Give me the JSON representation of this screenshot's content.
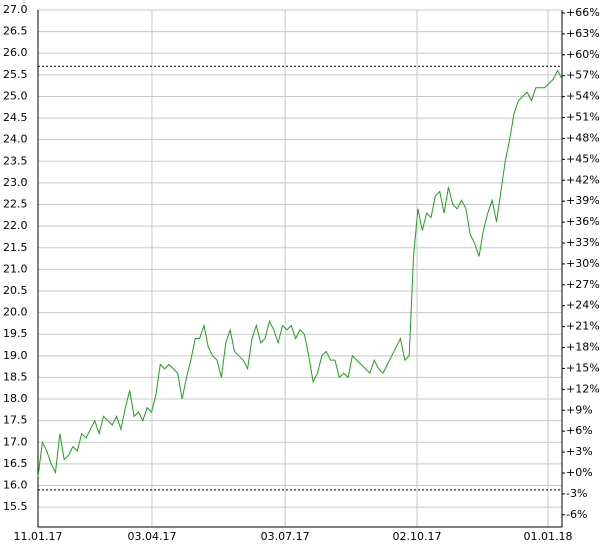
{
  "chart_data": {
    "type": "line",
    "series": [
      {
        "color": "#1fa01f",
        "values": [
          16.2,
          17.0,
          16.8,
          16.5,
          16.3,
          17.2,
          16.6,
          16.7,
          16.9,
          16.8,
          17.2,
          17.1,
          17.3,
          17.5,
          17.2,
          17.6,
          17.5,
          17.4,
          17.6,
          17.3,
          17.8,
          18.2,
          17.6,
          17.7,
          17.5,
          17.8,
          17.7,
          18.1,
          18.8,
          18.7,
          18.8,
          18.7,
          18.6,
          18.0,
          18.5,
          18.9,
          19.4,
          19.4,
          19.7,
          19.2,
          19.0,
          18.9,
          18.5,
          19.3,
          19.6,
          19.1,
          19.0,
          18.9,
          18.7,
          19.4,
          19.7,
          19.3,
          19.4,
          19.8,
          19.6,
          19.3,
          19.7,
          19.6,
          19.7,
          19.4,
          19.6,
          19.5,
          19.0,
          18.4,
          18.6,
          19.0,
          19.1,
          18.9,
          18.9,
          18.5,
          18.6,
          18.5,
          19.0,
          18.9,
          18.8,
          18.7,
          18.6,
          18.9,
          18.7,
          18.6,
          18.8,
          19.0,
          19.2,
          19.4,
          18.9,
          19.0,
          21.3,
          22.4,
          21.9,
          22.3,
          22.2,
          22.7,
          22.8,
          22.3,
          22.9,
          22.5,
          22.4,
          22.6,
          22.4,
          21.8,
          21.6,
          21.3,
          21.9,
          22.3,
          22.6,
          22.1,
          22.8,
          23.5,
          24.0,
          24.6,
          24.9,
          25.0,
          25.1,
          24.9,
          25.2,
          25.2,
          25.2,
          25.3,
          25.4,
          25.6,
          25.4
        ]
      }
    ],
    "xlim": [
      0,
      120
    ],
    "xticks": [
      {
        "value": 0,
        "label": "11.01.17"
      },
      {
        "value": 26.1,
        "label": "03.04.17"
      },
      {
        "value": 56.6,
        "label": "03.07.17"
      },
      {
        "value": 86.8,
        "label": "02.10.17"
      },
      {
        "value": 116.8,
        "label": "01.01.18"
      }
    ],
    "ylim": [
      15.04,
      27.0
    ],
    "yticks": [
      15.5,
      {
        "value": 16,
        "label": "16.0"
      },
      16.5,
      {
        "value": 17,
        "label": "17.0"
      },
      17.5,
      {
        "value": 18,
        "label": "18.0"
      },
      18.5,
      {
        "value": 19,
        "label": "19.0"
      },
      19.5,
      {
        "value": 20,
        "label": "20.0"
      },
      20.5,
      {
        "value": 21,
        "label": "21.0"
      },
      21.5,
      {
        "value": 22,
        "label": "22.0"
      },
      22.5,
      {
        "value": 23,
        "label": "23.0"
      },
      23.5,
      {
        "value": 24,
        "label": "24.0"
      },
      24.5,
      {
        "value": 25,
        "label": "25.0"
      },
      25.5,
      {
        "value": 26,
        "label": "26.0"
      },
      26.5,
      {
        "value": 27,
        "label": "27.0"
      }
    ],
    "y2lim": [
      -7.75,
      66.43
    ],
    "y2ticks": [
      {
        "value": -6,
        "label": "-6%"
      },
      {
        "value": -3,
        "label": "-3%"
      },
      {
        "value": 0,
        "label": "+0%"
      },
      {
        "value": 3,
        "label": "+3%"
      },
      {
        "value": 6,
        "label": "+6%"
      },
      {
        "value": 9,
        "label": "+9%"
      },
      {
        "value": 12,
        "label": "+12%"
      },
      {
        "value": 15,
        "label": "+15%"
      },
      {
        "value": 18,
        "label": "+18%"
      },
      {
        "value": 21,
        "label": "+21%"
      },
      {
        "value": 24,
        "label": "+24%"
      },
      {
        "value": 27,
        "label": "+27%"
      },
      {
        "value": 30,
        "label": "+30%"
      },
      {
        "value": 33,
        "label": "+33%"
      },
      {
        "value": 36,
        "label": "+36%"
      },
      {
        "value": 39,
        "label": "+39%"
      },
      {
        "value": 42,
        "label": "+42%"
      },
      {
        "value": 45,
        "label": "+45%"
      },
      {
        "value": 48,
        "label": "+48%"
      },
      {
        "value": 51,
        "label": "+51%"
      },
      {
        "value": 54,
        "label": "+54%"
      },
      {
        "value": 57,
        "label": "+57%"
      },
      {
        "value": 60,
        "label": "+60%"
      },
      {
        "value": 63,
        "label": "+63%"
      },
      {
        "value": 66,
        "label": "+66%"
      }
    ],
    "hlines": [
      25.7,
      15.9
    ],
    "grid": true
  }
}
